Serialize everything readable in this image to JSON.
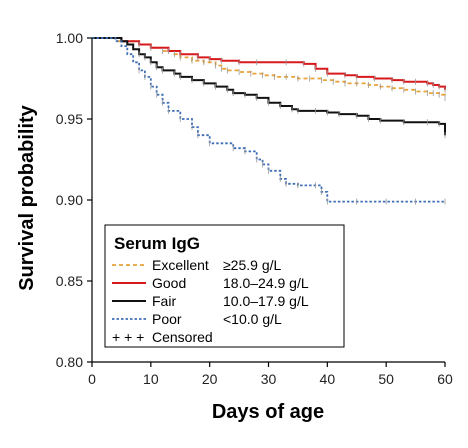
{
  "chart_data": {
    "type": "line",
    "title": "",
    "xlabel": "Days of age",
    "ylabel": "Survival probability",
    "xlim": [
      0,
      60
    ],
    "ylim": [
      0.8,
      1.0
    ],
    "xticks": [
      "0",
      "10",
      "20",
      "30",
      "40",
      "50",
      "60"
    ],
    "yticks": [
      "0.80",
      "0.85",
      "0.90",
      "0.95",
      "1.00"
    ],
    "grid": false,
    "legend": {
      "title": "Serum IgG",
      "position": "bottom-left",
      "censored_label": "Censored"
    },
    "series": [
      {
        "name": "Excellent",
        "range": "≥25.9 g/L",
        "color": "#e8a33a",
        "style": "dashed",
        "x": [
          0,
          4,
          8,
          10,
          12,
          14,
          15,
          17,
          19,
          21,
          22,
          23,
          25,
          27,
          29,
          31,
          33,
          35,
          37,
          39,
          41,
          43,
          45,
          47,
          49,
          51,
          53,
          55,
          57,
          58,
          59,
          60
        ],
        "y": [
          1.0,
          0.998,
          0.996,
          0.994,
          0.992,
          0.99,
          0.988,
          0.986,
          0.985,
          0.983,
          0.981,
          0.98,
          0.979,
          0.978,
          0.977,
          0.976,
          0.976,
          0.975,
          0.975,
          0.974,
          0.973,
          0.972,
          0.972,
          0.971,
          0.97,
          0.969,
          0.968,
          0.967,
          0.966,
          0.966,
          0.965,
          0.963
        ]
      },
      {
        "name": "Good",
        "range": "18.0–24.9 g/L",
        "color": "#d7191c",
        "style": "solid",
        "x": [
          0,
          5,
          8,
          10,
          13,
          15,
          18,
          20,
          22,
          25,
          28,
          33,
          36,
          38,
          40,
          43,
          45,
          48,
          51,
          53,
          55,
          57,
          58,
          59,
          60
        ],
        "y": [
          1.0,
          0.998,
          0.996,
          0.994,
          0.992,
          0.99,
          0.988,
          0.987,
          0.986,
          0.985,
          0.985,
          0.985,
          0.984,
          0.981,
          0.978,
          0.977,
          0.976,
          0.975,
          0.974,
          0.973,
          0.973,
          0.972,
          0.971,
          0.97,
          0.968
        ]
      },
      {
        "name": "Fair",
        "range": "10.0–17.9 g/L",
        "color": "#111111",
        "style": "solid",
        "x": [
          0,
          5,
          6,
          7,
          8,
          9,
          10,
          11,
          12,
          14,
          15,
          17,
          19,
          21,
          23,
          24,
          26,
          28,
          30,
          32,
          34,
          35,
          38,
          40,
          42,
          45,
          47,
          49,
          53,
          57,
          59,
          60
        ],
        "y": [
          1.0,
          0.998,
          0.996,
          0.993,
          0.99,
          0.988,
          0.985,
          0.982,
          0.98,
          0.978,
          0.976,
          0.974,
          0.972,
          0.97,
          0.968,
          0.966,
          0.965,
          0.963,
          0.96,
          0.958,
          0.956,
          0.955,
          0.955,
          0.954,
          0.953,
          0.952,
          0.95,
          0.949,
          0.948,
          0.948,
          0.947,
          0.94
        ]
      },
      {
        "name": "Poor",
        "range": "<10.0 g/L",
        "color": "#3f6fb5",
        "style": "dotted",
        "x": [
          0,
          4,
          5,
          6,
          7,
          8,
          9,
          10,
          11,
          12,
          13,
          15,
          17,
          18,
          20,
          24,
          26,
          28,
          29,
          30,
          32,
          33,
          35,
          38,
          39,
          40,
          45,
          50,
          55,
          60
        ],
        "y": [
          1.0,
          0.998,
          0.995,
          0.99,
          0.985,
          0.98,
          0.976,
          0.97,
          0.965,
          0.96,
          0.955,
          0.95,
          0.945,
          0.94,
          0.935,
          0.932,
          0.93,
          0.925,
          0.922,
          0.918,
          0.913,
          0.91,
          0.909,
          0.909,
          0.905,
          0.899,
          0.899,
          0.899,
          0.899,
          0.899
        ]
      }
    ]
  }
}
